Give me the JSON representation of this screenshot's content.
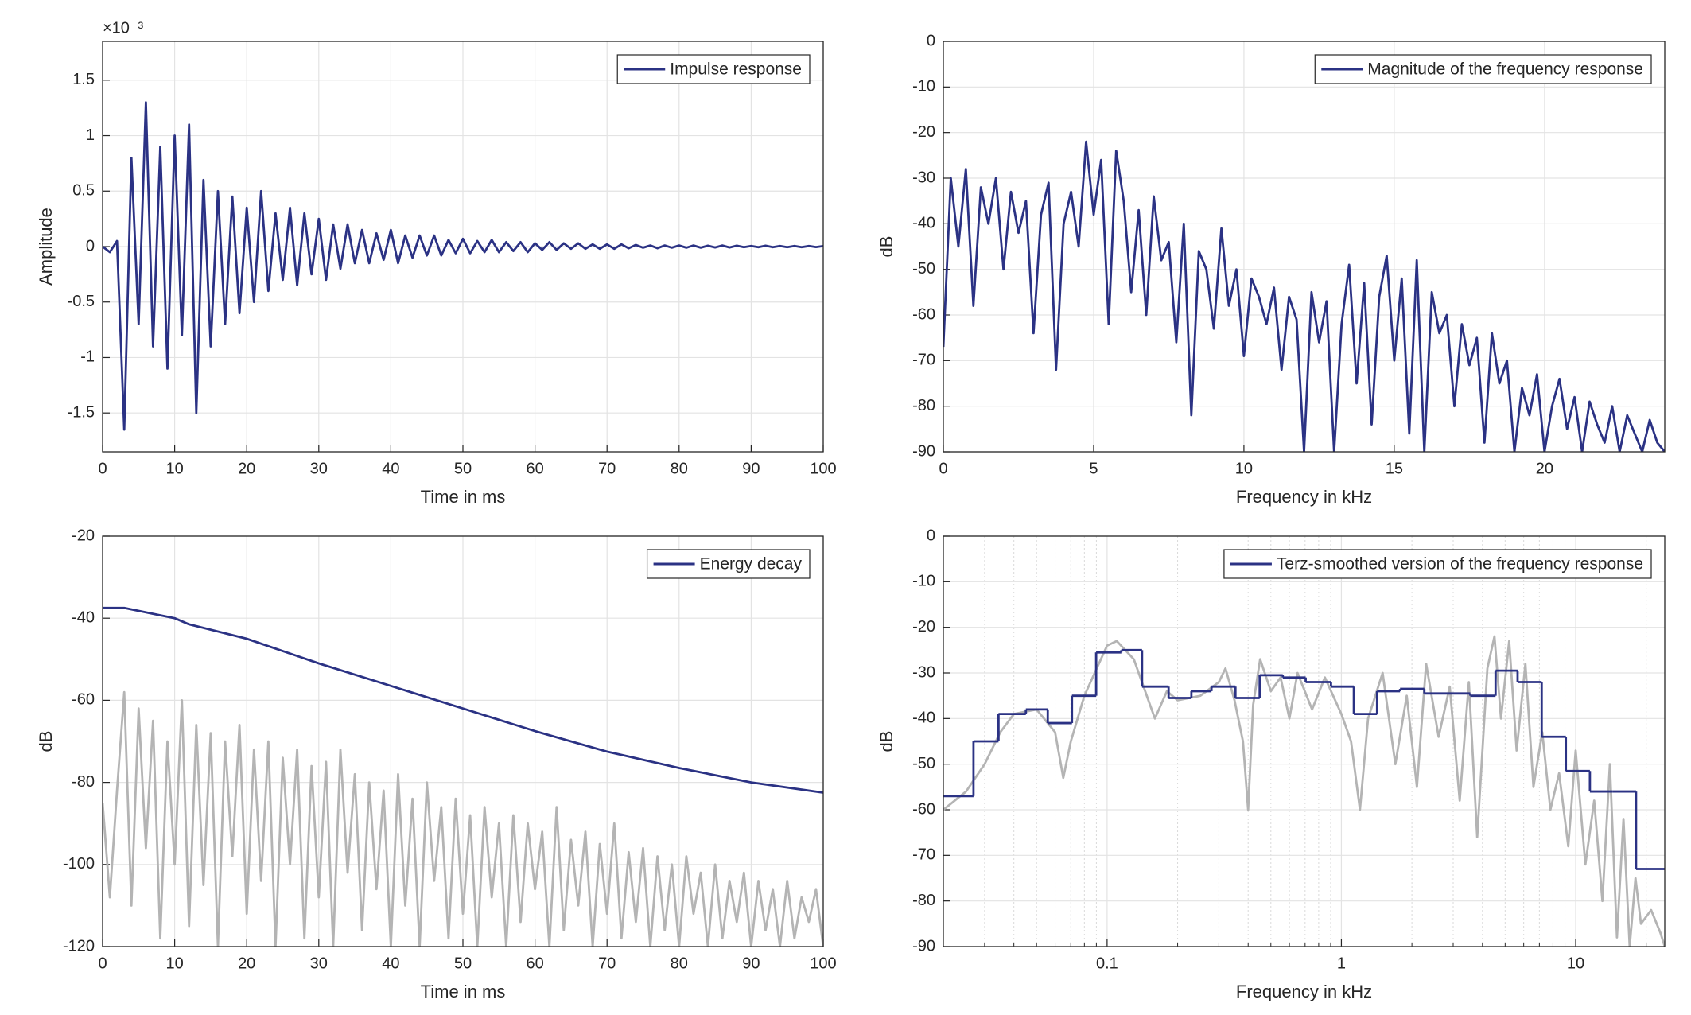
{
  "chart_data": [
    {
      "type": "line",
      "xlabel": "Time in ms",
      "ylabel": "Amplitude",
      "y_multiplier": "×10⁻³",
      "xlim": [
        0,
        100
      ],
      "xticks": [
        0,
        10,
        20,
        30,
        40,
        50,
        60,
        70,
        80,
        90,
        100
      ],
      "ylim": [
        -1.85,
        1.85
      ],
      "yticks": [
        -1.5,
        -1,
        -0.5,
        0,
        0.5,
        1,
        1.5
      ],
      "grid": true,
      "legend": "northeast",
      "series": [
        {
          "name": "Impulse response",
          "color": "#2b3284",
          "x": [
            0,
            1,
            2,
            3,
            4,
            5,
            6,
            7,
            8,
            9,
            10,
            11,
            12,
            13,
            14,
            15,
            16,
            17,
            18,
            19,
            20,
            21,
            22,
            23,
            24,
            25,
            26,
            27,
            28,
            29,
            30,
            31,
            32,
            33,
            34,
            35,
            36,
            37,
            38,
            39,
            40,
            41,
            42,
            43,
            44,
            45,
            46,
            47,
            48,
            49,
            50,
            51,
            52,
            53,
            54,
            55,
            56,
            57,
            58,
            59,
            60,
            61,
            62,
            63,
            64,
            65,
            66,
            67,
            68,
            69,
            70,
            71,
            72,
            73,
            74,
            75,
            76,
            77,
            78,
            79,
            80,
            81,
            82,
            83,
            84,
            85,
            86,
            87,
            88,
            89,
            90,
            91,
            92,
            93,
            94,
            95,
            96,
            97,
            98,
            99,
            100
          ],
          "values": [
            0,
            -0.05,
            0.05,
            -1.65,
            0.8,
            -0.7,
            1.3,
            -0.9,
            0.9,
            -1.1,
            1.0,
            -0.8,
            1.1,
            -1.5,
            0.6,
            -0.9,
            0.5,
            -0.7,
            0.45,
            -0.6,
            0.35,
            -0.5,
            0.5,
            -0.4,
            0.3,
            -0.3,
            0.35,
            -0.35,
            0.3,
            -0.25,
            0.25,
            -0.3,
            0.2,
            -0.2,
            0.2,
            -0.15,
            0.15,
            -0.15,
            0.12,
            -0.12,
            0.15,
            -0.15,
            0.1,
            -0.1,
            0.1,
            -0.08,
            0.1,
            -0.08,
            0.06,
            -0.06,
            0.07,
            -0.06,
            0.05,
            -0.05,
            0.06,
            -0.05,
            0.04,
            -0.04,
            0.04,
            -0.05,
            0.03,
            -0.03,
            0.04,
            -0.03,
            0.03,
            -0.02,
            0.03,
            -0.02,
            0.02,
            -0.02,
            0.02,
            -0.02,
            0.02,
            -0.015,
            0.015,
            -0.01,
            0.01,
            -0.015,
            0.01,
            -0.01,
            0.01,
            -0.01,
            0.01,
            -0.01,
            0.008,
            -0.008,
            0.01,
            -0.008,
            0.008,
            -0.006,
            0.006,
            -0.006,
            0.008,
            -0.006,
            0.005,
            -0.005,
            0.006,
            -0.005,
            0.005,
            -0.004,
            0.004
          ]
        }
      ]
    },
    {
      "type": "line",
      "xlabel": "Frequency in kHz",
      "ylabel": "dB",
      "xlim": [
        0,
        24
      ],
      "xticks": [
        0,
        5,
        10,
        15,
        20
      ],
      "ylim": [
        -90,
        0
      ],
      "yticks": [
        -90,
        -80,
        -70,
        -60,
        -50,
        -40,
        -30,
        -20,
        -10,
        0
      ],
      "grid": true,
      "legend": "northeast",
      "series": [
        {
          "name": "Magnitude of the frequency response",
          "color": "#2b3284",
          "x": [
            0,
            0.25,
            0.5,
            0.75,
            1,
            1.25,
            1.5,
            1.75,
            2,
            2.25,
            2.5,
            2.75,
            3,
            3.25,
            3.5,
            3.75,
            4,
            4.25,
            4.5,
            4.75,
            5,
            5.25,
            5.5,
            5.75,
            6,
            6.25,
            6.5,
            6.75,
            7,
            7.25,
            7.5,
            7.75,
            8,
            8.25,
            8.5,
            8.75,
            9,
            9.25,
            9.5,
            9.75,
            10,
            10.25,
            10.5,
            10.75,
            11,
            11.25,
            11.5,
            11.75,
            12,
            12.25,
            12.5,
            12.75,
            13,
            13.25,
            13.5,
            13.75,
            14,
            14.25,
            14.5,
            14.75,
            15,
            15.25,
            15.5,
            15.75,
            16,
            16.25,
            16.5,
            16.75,
            17,
            17.25,
            17.5,
            17.75,
            18,
            18.25,
            18.5,
            18.75,
            19,
            19.25,
            19.5,
            19.75,
            20,
            20.25,
            20.5,
            20.75,
            21,
            21.25,
            21.5,
            21.75,
            22,
            22.25,
            22.5,
            22.75,
            23,
            23.25,
            23.5,
            23.75,
            24
          ],
          "values": [
            -67,
            -30,
            -45,
            -28,
            -58,
            -32,
            -40,
            -30,
            -50,
            -33,
            -42,
            -35,
            -64,
            -38,
            -31,
            -72,
            -40,
            -33,
            -45,
            -22,
            -38,
            -26,
            -62,
            -24,
            -35,
            -55,
            -37,
            -60,
            -34,
            -48,
            -44,
            -66,
            -40,
            -82,
            -46,
            -50,
            -63,
            -41,
            -58,
            -50,
            -69,
            -52,
            -56,
            -62,
            -54,
            -72,
            -56,
            -61,
            -90,
            -55,
            -66,
            -57,
            -90,
            -62,
            -49,
            -75,
            -53,
            -84,
            -56,
            -47,
            -70,
            -52,
            -86,
            -48,
            -90,
            -55,
            -64,
            -60,
            -80,
            -62,
            -71,
            -65,
            -88,
            -64,
            -75,
            -70,
            -90,
            -76,
            -82,
            -73,
            -90,
            -80,
            -74,
            -85,
            -78,
            -90,
            -79,
            -84,
            -88,
            -80,
            -90,
            -82,
            -86,
            -90,
            -83,
            -88,
            -90
          ]
        }
      ]
    },
    {
      "type": "line",
      "xlabel": "Time in ms",
      "ylabel": "dB",
      "xlim": [
        0,
        100
      ],
      "xticks": [
        0,
        10,
        20,
        30,
        40,
        50,
        60,
        70,
        80,
        90,
        100
      ],
      "ylim": [
        -120,
        -20
      ],
      "yticks": [
        -120,
        -100,
        -80,
        -60,
        -40,
        -20
      ],
      "grid": true,
      "legend": "northeast",
      "series": [
        {
          "color": "#b4b4b4",
          "x": [
            0,
            1,
            2,
            3,
            4,
            5,
            6,
            7,
            8,
            9,
            10,
            11,
            12,
            13,
            14,
            15,
            16,
            17,
            18,
            19,
            20,
            21,
            22,
            23,
            24,
            25,
            26,
            27,
            28,
            29,
            30,
            31,
            32,
            33,
            34,
            35,
            36,
            37,
            38,
            39,
            40,
            41,
            42,
            43,
            44,
            45,
            46,
            47,
            48,
            49,
            50,
            51,
            52,
            53,
            54,
            55,
            56,
            57,
            58,
            59,
            60,
            61,
            62,
            63,
            64,
            65,
            66,
            67,
            68,
            69,
            70,
            71,
            72,
            73,
            74,
            75,
            76,
            77,
            78,
            79,
            80,
            81,
            82,
            83,
            84,
            85,
            86,
            87,
            88,
            89,
            90,
            91,
            92,
            93,
            94,
            95,
            96,
            97,
            98,
            99,
            100
          ],
          "values": [
            -85,
            -108,
            -82,
            -58,
            -110,
            -62,
            -96,
            -65,
            -118,
            -70,
            -100,
            -60,
            -115,
            -66,
            -105,
            -68,
            -120,
            -70,
            -98,
            -66,
            -112,
            -72,
            -104,
            -70,
            -120,
            -74,
            -100,
            -72,
            -118,
            -76,
            -108,
            -75,
            -120,
            -72,
            -102,
            -78,
            -116,
            -80,
            -106,
            -82,
            -120,
            -78,
            -110,
            -84,
            -120,
            -80,
            -104,
            -86,
            -118,
            -84,
            -112,
            -88,
            -120,
            -86,
            -108,
            -90,
            -120,
            -88,
            -114,
            -90,
            -106,
            -92,
            -120,
            -86,
            -116,
            -94,
            -110,
            -92,
            -120,
            -95,
            -112,
            -90,
            -118,
            -97,
            -114,
            -96,
            -120,
            -98,
            -116,
            -100,
            -120,
            -98,
            -112,
            -102,
            -120,
            -100,
            -118,
            -104,
            -114,
            -102,
            -120,
            -104,
            -116,
            -106,
            -120,
            -104,
            -118,
            -108,
            -114,
            -106,
            -120
          ]
        },
        {
          "name": "Energy decay",
          "color": "#2b3284",
          "x": [
            0,
            3,
            10,
            12,
            20,
            30,
            40,
            50,
            60,
            70,
            80,
            90,
            100
          ],
          "values": [
            -37.5,
            -37.5,
            -40,
            -41.5,
            -45,
            -51,
            -56.5,
            -62,
            -67.5,
            -72.5,
            -76.5,
            -80,
            -82.5
          ]
        }
      ]
    },
    {
      "type": "line",
      "xlabel": "Frequency in kHz",
      "ylabel": "dB",
      "xscale": "log",
      "minor_grid": true,
      "xlim": [
        0.02,
        24
      ],
      "xticks": [
        0.1,
        1,
        10
      ],
      "ylim": [
        -90,
        0
      ],
      "yticks": [
        -90,
        -80,
        -70,
        -60,
        -50,
        -40,
        -30,
        -20,
        -10,
        0
      ],
      "grid": true,
      "legend": "northeast",
      "series": [
        {
          "color": "#b4b4b4",
          "x": [
            0.02,
            0.025,
            0.03,
            0.035,
            0.04,
            0.05,
            0.06,
            0.065,
            0.07,
            0.08,
            0.1,
            0.11,
            0.13,
            0.15,
            0.16,
            0.18,
            0.2,
            0.25,
            0.3,
            0.32,
            0.35,
            0.38,
            0.4,
            0.42,
            0.45,
            0.5,
            0.55,
            0.6,
            0.65,
            0.75,
            0.85,
            1,
            1.1,
            1.2,
            1.3,
            1.5,
            1.7,
            1.9,
            2.1,
            2.3,
            2.6,
            2.9,
            3.2,
            3.5,
            3.8,
            4.2,
            4.5,
            4.8,
            5.2,
            5.6,
            6.1,
            6.6,
            7.2,
            7.8,
            8.5,
            9.3,
            10,
            11,
            12,
            13,
            14,
            15,
            16,
            17,
            18,
            19,
            21,
            23,
            24
          ],
          "values": [
            -60,
            -56,
            -50,
            -43,
            -39,
            -38,
            -43,
            -53,
            -45,
            -35,
            -24,
            -23,
            -27,
            -36,
            -40,
            -34,
            -36,
            -35,
            -32,
            -29,
            -36,
            -45,
            -60,
            -37,
            -27,
            -34,
            -31,
            -40,
            -30,
            -38,
            -31,
            -39,
            -45,
            -60,
            -40,
            -30,
            -50,
            -35,
            -55,
            -28,
            -44,
            -33,
            -58,
            -32,
            -66,
            -29,
            -22,
            -40,
            -23,
            -47,
            -28,
            -55,
            -43,
            -60,
            -52,
            -68,
            -47,
            -72,
            -58,
            -80,
            -50,
            -88,
            -62,
            -90,
            -75,
            -85,
            -82,
            -87,
            -90
          ]
        },
        {
          "name": "Terz-smoothed version of the frequency response",
          "color": "#2b3284",
          "step": true,
          "x": [
            0.02,
            0.0269,
            0.0344,
            0.045,
            0.0558,
            0.0708,
            0.0898,
            0.115,
            0.141,
            0.183,
            0.229,
            0.279,
            0.353,
            0.448,
            0.562,
            0.704,
            0.903,
            1.13,
            1.42,
            1.78,
            2.26,
            2.83,
            3.55,
            4.55,
            5.65,
            7.16,
            9.08,
            11.5,
            14.4,
            18.1
          ],
          "values": [
            -57,
            -45,
            -39,
            -38,
            -41,
            -35,
            -25.5,
            -25,
            -33,
            -35.5,
            -34,
            -33,
            -35.5,
            -30.5,
            -31,
            -32,
            -33,
            -39,
            -34,
            -33.5,
            -34.5,
            -34.5,
            -35,
            -29.5,
            -32,
            -44,
            -51.5,
            -56,
            -56,
            -73
          ]
        }
      ]
    }
  ]
}
